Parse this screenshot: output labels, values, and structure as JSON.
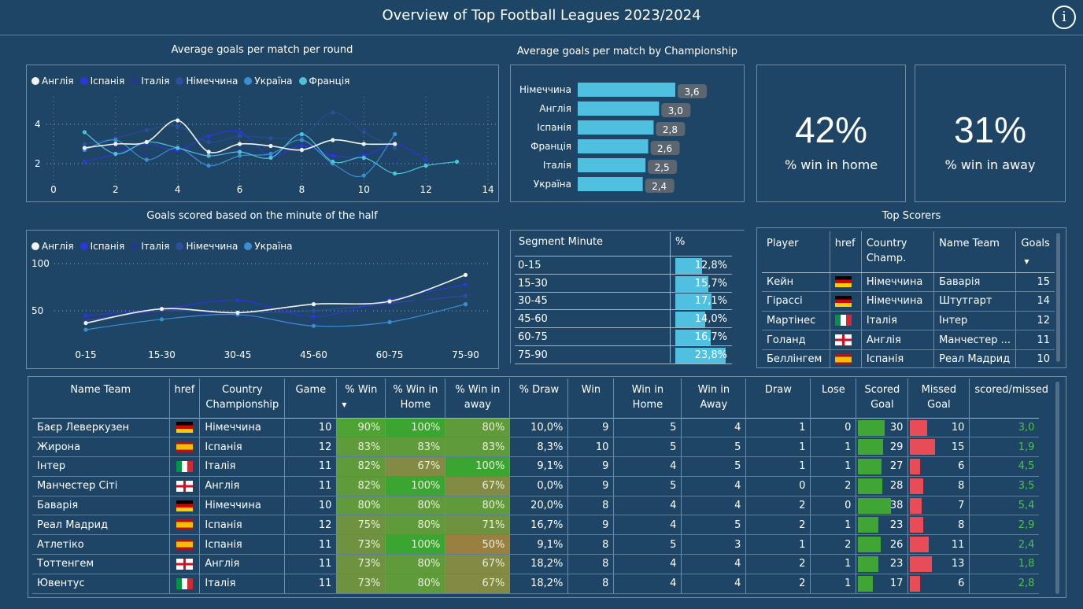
{
  "header": {
    "title": "Overview of Top Football Leagues 2023/2024",
    "info_icon": "info-icon"
  },
  "colors": {
    "england": "#f2f2f2",
    "spain": "#2b37d6",
    "italy": "#253a86",
    "germany": "#2c4f9c",
    "ukraine": "#3b8fd0",
    "france": "#4ec3d8",
    "bar": "#4fc0e0",
    "good": "#3fa535",
    "bad": "#e74c57"
  },
  "line1": {
    "title": "Average goals per match per round",
    "legend": [
      "Англія",
      "Іспанія",
      "Італія",
      "Німеччина",
      "Україна",
      "Франція"
    ],
    "y_ticks": [
      "4",
      "2"
    ],
    "x_ticks": [
      "0",
      "2",
      "4",
      "6",
      "8",
      "10",
      "12",
      "14"
    ]
  },
  "line2": {
    "title": "Goals scored based on the minute of the half",
    "legend": [
      "Англія",
      "Іспанія",
      "Італія",
      "Німеччина",
      "Україна"
    ],
    "y_ticks": [
      "100",
      "50"
    ],
    "x_ticks": [
      "0-15",
      "15-30",
      "30-45",
      "45-60",
      "60-75",
      "75-90"
    ]
  },
  "chart_data": [
    {
      "type": "line",
      "title": "Average goals per match per round",
      "x": [
        1,
        2,
        3,
        4,
        5,
        6,
        7,
        8,
        9,
        10,
        11,
        12,
        13
      ],
      "xlim": [
        0,
        14
      ],
      "ylim": [
        1,
        5
      ],
      "series": [
        {
          "name": "Англія",
          "values": [
            2.8,
            3.0,
            3.1,
            4.2,
            2.6,
            3.0,
            2.9,
            2.7,
            3.2,
            3.0,
            3.0,
            null,
            null
          ]
        },
        {
          "name": "Іспанія",
          "values": [
            2.1,
            2.5,
            3.0,
            2.7,
            3.4,
            3.6,
            2.4,
            2.9,
            2.4,
            2.4,
            3.0,
            2.2,
            null
          ]
        },
        {
          "name": "Італія",
          "values": [
            2.7,
            2.8,
            2.5,
            2.6,
            2.4,
            2.7,
            2.4,
            3.0,
            2.5,
            2.6,
            2.2,
            null,
            null
          ]
        },
        {
          "name": "Німеччина",
          "values": [
            3.0,
            3.3,
            3.7,
            3.9,
            3.1,
            3.4,
            3.3,
            3.4,
            4.6,
            3.6,
            2.8,
            null,
            null
          ]
        },
        {
          "name": "Україна",
          "values": [
            2.7,
            3.2,
            2.2,
            2.8,
            1.9,
            2.4,
            2.5,
            3.2,
            2.0,
            1.4,
            3.5,
            null,
            null
          ]
        },
        {
          "name": "Франція",
          "values": [
            3.6,
            2.5,
            3.1,
            2.8,
            2.4,
            2.6,
            2.3,
            3.5,
            2.1,
            2.3,
            1.5,
            1.9,
            2.1
          ]
        }
      ]
    },
    {
      "type": "line",
      "title": "Goals scored based on the minute of the half",
      "categories": [
        "0-15",
        "15-30",
        "30-45",
        "45-60",
        "60-75",
        "75-90"
      ],
      "ylim": [
        10,
        110
      ],
      "series": [
        {
          "name": "Англія",
          "values": [
            37,
            52,
            48,
            57,
            60,
            88
          ]
        },
        {
          "name": "Іспанія",
          "values": [
            45,
            52,
            61,
            44,
            62,
            78
          ]
        },
        {
          "name": "Італія",
          "values": [
            42,
            48,
            45,
            38,
            55,
            70
          ]
        },
        {
          "name": "Німеччина",
          "values": [
            40,
            50,
            48,
            50,
            58,
            66
          ]
        },
        {
          "name": "Україна",
          "values": [
            30,
            41,
            46,
            34,
            38,
            57
          ]
        }
      ]
    },
    {
      "type": "bar",
      "title": "Average goals per match by Championship",
      "categories": [
        "Німеччина",
        "Англія",
        "Іспанія",
        "Франція",
        "Італія",
        "Україна"
      ],
      "values": [
        3.6,
        3.0,
        2.8,
        2.6,
        2.5,
        2.4
      ],
      "labels": [
        "3,6",
        "3,0",
        "2,8",
        "2,6",
        "2,5",
        "2,4"
      ]
    }
  ],
  "kpis": [
    {
      "value": "42%",
      "label": "% win in home"
    },
    {
      "value": "31%",
      "label": "% win in away"
    }
  ],
  "segment": {
    "headers": [
      "Segment Minute",
      "%"
    ],
    "rows": [
      {
        "seg": "0-15",
        "pct": "12,8%",
        "v": 12.8
      },
      {
        "seg": "15-30",
        "pct": "15,7%",
        "v": 15.7
      },
      {
        "seg": "30-45",
        "pct": "17,1%",
        "v": 17.1
      },
      {
        "seg": "45-60",
        "pct": "14,0%",
        "v": 14.0
      },
      {
        "seg": "60-75",
        "pct": "16,7%",
        "v": 16.7
      },
      {
        "seg": "75-90",
        "pct": "23,8%",
        "v": 23.8
      }
    ]
  },
  "scorers": {
    "title": "Top Scorers",
    "headers": [
      "Player",
      "href",
      "Country Champ.",
      "Name Team",
      "Goals"
    ],
    "rows": [
      {
        "player": "Кейн",
        "flag": "germany",
        "country": "Німеччина",
        "team": "Баварія",
        "goals": "15"
      },
      {
        "player": "Гірассі",
        "flag": "germany",
        "country": "Німеччина",
        "team": "Штутгарт",
        "goals": "14"
      },
      {
        "player": "Мартінес",
        "flag": "italy",
        "country": "Італія",
        "team": "Інтер",
        "goals": "12"
      },
      {
        "player": "Голанд",
        "flag": "england",
        "country": "Англія",
        "team": "Манчестер ...",
        "goals": "11"
      },
      {
        "player": "Беллінгем",
        "flag": "spain",
        "country": "Іспанія",
        "team": "Реал Мадрид",
        "goals": "10"
      }
    ]
  },
  "teams": {
    "headers": [
      "Name Team",
      "href",
      "Country Championship",
      "Game",
      "% Win",
      "% Win in Home",
      "% Win in away",
      "% Draw",
      "Win",
      "Win in Home",
      "Win in Away",
      "Draw",
      "Lose",
      "Scored Goal",
      "Missed Goal",
      "scored/missed"
    ],
    "rows": [
      {
        "team": "Баєр Леверкузен",
        "flag": "germany",
        "country": "Німеччина",
        "game": "10",
        "win_pct": "90%",
        "home_pct": "100%",
        "away_pct": "80%",
        "draw_pct": "10,0%",
        "win": "9",
        "win_home": "5",
        "win_away": "4",
        "draw": "1",
        "lose": "0",
        "scored": "30",
        "missed": "10",
        "ratio": "3,0"
      },
      {
        "team": "Жирона",
        "flag": "spain",
        "country": "Іспанія",
        "game": "12",
        "win_pct": "83%",
        "home_pct": "83%",
        "away_pct": "83%",
        "draw_pct": "8,3%",
        "win": "10",
        "win_home": "5",
        "win_away": "5",
        "draw": "1",
        "lose": "1",
        "scored": "29",
        "missed": "15",
        "ratio": "1,9"
      },
      {
        "team": "Інтер",
        "flag": "italy",
        "country": "Італія",
        "game": "11",
        "win_pct": "82%",
        "home_pct": "67%",
        "away_pct": "100%",
        "draw_pct": "9,1%",
        "win": "9",
        "win_home": "4",
        "win_away": "5",
        "draw": "1",
        "lose": "1",
        "scored": "27",
        "missed": "6",
        "ratio": "4,5"
      },
      {
        "team": "Манчестер Сіті",
        "flag": "england",
        "country": "Англія",
        "game": "11",
        "win_pct": "82%",
        "home_pct": "100%",
        "away_pct": "67%",
        "draw_pct": "0,0%",
        "win": "9",
        "win_home": "5",
        "win_away": "4",
        "draw": "0",
        "lose": "2",
        "scored": "28",
        "missed": "8",
        "ratio": "3,5"
      },
      {
        "team": "Баварія",
        "flag": "germany",
        "country": "Німеччина",
        "game": "10",
        "win_pct": "80%",
        "home_pct": "80%",
        "away_pct": "80%",
        "draw_pct": "20,0%",
        "win": "8",
        "win_home": "4",
        "win_away": "4",
        "draw": "2",
        "lose": "0",
        "scored": "38",
        "missed": "7",
        "ratio": "5,4"
      },
      {
        "team": "Реал Мадрид",
        "flag": "spain",
        "country": "Іспанія",
        "game": "12",
        "win_pct": "75%",
        "home_pct": "80%",
        "away_pct": "71%",
        "draw_pct": "16,7%",
        "win": "9",
        "win_home": "4",
        "win_away": "5",
        "draw": "2",
        "lose": "1",
        "scored": "23",
        "missed": "8",
        "ratio": "2,9"
      },
      {
        "team": "Атлетіко",
        "flag": "spain",
        "country": "Іспанія",
        "game": "11",
        "win_pct": "73%",
        "home_pct": "100%",
        "away_pct": "50%",
        "draw_pct": "9,1%",
        "win": "8",
        "win_home": "5",
        "win_away": "3",
        "draw": "1",
        "lose": "2",
        "scored": "26",
        "missed": "11",
        "ratio": "2,4"
      },
      {
        "team": "Тоттенгем",
        "flag": "england",
        "country": "Англія",
        "game": "11",
        "win_pct": "73%",
        "home_pct": "80%",
        "away_pct": "67%",
        "draw_pct": "18,2%",
        "win": "8",
        "win_home": "4",
        "win_away": "4",
        "draw": "2",
        "lose": "1",
        "scored": "23",
        "missed": "13",
        "ratio": "1,8"
      },
      {
        "team": "Ювентус",
        "flag": "italy",
        "country": "Італія",
        "game": "11",
        "win_pct": "73%",
        "home_pct": "80%",
        "away_pct": "67%",
        "draw_pct": "18,2%",
        "win": "8",
        "win_home": "4",
        "win_away": "4",
        "draw": "2",
        "lose": "1",
        "scored": "17",
        "missed": "6",
        "ratio": "2,8"
      }
    ]
  }
}
